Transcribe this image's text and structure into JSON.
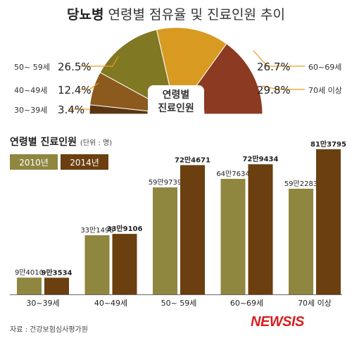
{
  "title_bold": "당뇨병",
  "title_rest": "연령별 점유율 및 진료인원 추이",
  "pie_center_label_1": "연령별",
  "pie_center_label_2": "진료인원",
  "legend_title": "연령별 진료인원",
  "legend_unit": "(단위 : 명)",
  "source": "자료 : 건강보험심사평가원",
  "logo": "NEWSIS",
  "colors": {
    "y2010": "#8f8640",
    "y2014": "#6b3f10",
    "slice_30_39": "#5a3510",
    "slice_40_49": "#8c5a1c",
    "slice_50_59": "#807822",
    "slice_60_69": "#d99a22",
    "slice_70plus": "#8c3a22",
    "leader": "#f39a1a"
  },
  "chart_data": [
    {
      "type": "pie",
      "title": "연령별 진료인원",
      "slices": [
        {
          "label": "30~39세",
          "value": 3.4,
          "text": "3.4%"
        },
        {
          "label": "40~49세",
          "value": 12.4,
          "text": "12.4%"
        },
        {
          "label": "50~ 59세",
          "value": 26.5,
          "text": "26.5%"
        },
        {
          "label": "60~69세",
          "value": 26.7,
          "text": "26.7%"
        },
        {
          "label": "70세 이상",
          "value": 29.8,
          "text": "29.8%"
        }
      ]
    },
    {
      "type": "bar",
      "title": "연령별 진료인원",
      "unit": "명",
      "categories": [
        "30~39세",
        "40~49세",
        "50~ 59세",
        "60~69세",
        "70세 이상"
      ],
      "series": [
        {
          "name": "2010년",
          "values": [
            94010,
            331498,
            599739,
            647634,
            592283
          ],
          "labels": [
            "9만4010",
            "33만1498",
            "59만9739",
            "64만7634",
            "59만2283"
          ]
        },
        {
          "name": "2014년",
          "values": [
            93534,
            339106,
            724671,
            729434,
            813795
          ],
          "labels": [
            "9만3534",
            "33만9106",
            "72만4671",
            "72만9434",
            "81만3795"
          ]
        }
      ]
    }
  ]
}
